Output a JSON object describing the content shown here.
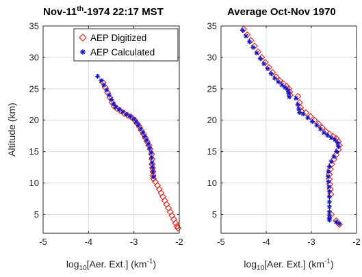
{
  "chart_data": [
    {
      "type": "scatter",
      "title": {
        "prefix": "Nov-11",
        "sup": "th",
        "suffix": "-1974 22:17 MST"
      },
      "xlabel": {
        "pre": "log",
        "sub": "10",
        "mid": "[Aer. Ext.] (km",
        "sup": "-1",
        "post": ")"
      },
      "ylabel": "Altitude (km)",
      "xlim": [
        -5,
        -2
      ],
      "ylim": [
        2,
        35
      ],
      "xticks": [
        "-5",
        "-4",
        "-3",
        "-2"
      ],
      "yticks": [
        "5",
        "10",
        "15",
        "20",
        "25",
        "30",
        "35"
      ],
      "grid": true,
      "legend": {
        "position": "top-right",
        "entries": [
          "AEP Digitized",
          "AEP Calculated"
        ]
      },
      "series": [
        {
          "name": "AEP Digitized",
          "marker": "diamond",
          "color": "#e8231c",
          "x": [
            -3.68,
            -3.63,
            -3.58,
            -3.53,
            -3.48,
            -3.43,
            -3.38,
            -3.3,
            -3.22,
            -3.14,
            -3.06,
            -2.98,
            -2.93,
            -2.88,
            -2.84,
            -2.79,
            -2.75,
            -2.71,
            -2.67,
            -2.64,
            -2.61,
            -2.6,
            -2.6,
            -2.59,
            -2.58,
            -2.58,
            -2.57,
            -2.53,
            -2.48,
            -2.44,
            -2.4,
            -2.36,
            -2.32,
            -2.28,
            -2.24,
            -2.2,
            -2.16,
            -2.12,
            -2.08,
            -2.05,
            -2.03
          ],
          "y": [
            26,
            25.2,
            24.4,
            23.6,
            22.8,
            22.2,
            21.9,
            21.5,
            21.1,
            20.8,
            20.5,
            20,
            19.5,
            19,
            18.4,
            17.8,
            17.2,
            16.6,
            16,
            15.4,
            14.6,
            13.8,
            13,
            12.4,
            11.8,
            11.2,
            10.7,
            10.2,
            9.6,
            9,
            8.4,
            7.8,
            7.2,
            6.6,
            6,
            5.4,
            4.8,
            4.2,
            3.6,
            3.1,
            2.8
          ]
        },
        {
          "name": "AEP Calculated",
          "marker": "asterisk",
          "color": "#1414c8",
          "x": [
            -3.8,
            -3.72,
            -3.66,
            -3.6,
            -3.55,
            -3.5,
            -3.45,
            -3.4,
            -3.32,
            -3.24,
            -3.16,
            -3.08,
            -3.0,
            -2.95,
            -2.9,
            -2.85,
            -2.8,
            -2.76,
            -2.72,
            -2.68,
            -2.65,
            -2.62,
            -2.61,
            -2.6,
            -2.59,
            -2.58,
            -2.57
          ],
          "y": [
            27,
            26.3,
            25.6,
            24.8,
            24,
            23.3,
            22.6,
            22.1,
            21.7,
            21.3,
            20.9,
            20.6,
            20.2,
            19.7,
            19.2,
            18.6,
            18,
            17.4,
            16.8,
            16.2,
            15.5,
            14.8,
            14,
            13.2,
            12.5,
            11.8,
            11
          ]
        }
      ]
    },
    {
      "type": "scatter",
      "title": "Average Oct-Nov 1970",
      "xlabel": {
        "pre": "log",
        "sub": "10",
        "mid": "[Aer. Ext.] (km",
        "sup": "-1",
        "post": ")"
      },
      "xlim": [
        -5,
        -2
      ],
      "ylim": [
        2,
        35
      ],
      "xticks": [
        "-5",
        "-4",
        "-3",
        "-2"
      ],
      "yticks": [
        "5",
        "10",
        "15",
        "20",
        "25",
        "30",
        "35"
      ],
      "grid": true,
      "series": [
        {
          "name": "AEP Digitized",
          "marker": "diamond",
          "color": "#e8231c",
          "x": [
            -4.5,
            -4.42,
            -4.34,
            -4.26,
            -4.18,
            -4.1,
            -4.02,
            -3.94,
            -3.86,
            -3.78,
            -3.7,
            -3.62,
            -3.55,
            -3.5,
            -3.48,
            -3.47,
            -3.3,
            -3.26,
            -3.24,
            -3.22,
            -3.12,
            -3.02,
            -2.93,
            -2.84,
            -2.76,
            -2.68,
            -2.6,
            -2.52,
            -2.45,
            -2.4,
            -2.38,
            -2.4,
            -2.45,
            -2.5,
            -2.55,
            -2.58,
            -2.6,
            -2.6,
            -2.59,
            -2.58,
            -2.57,
            -2.56,
            -2.45,
            -2.38
          ],
          "y": [
            34.5,
            33.6,
            32.7,
            31.8,
            30.9,
            30,
            29.2,
            28.4,
            27.6,
            26.9,
            26.3,
            25.8,
            25.4,
            25,
            24.5,
            24,
            23.8,
            22.8,
            22,
            21.4,
            21.2,
            20.6,
            20,
            19.4,
            18.8,
            18.2,
            17.8,
            17.4,
            17.1,
            16.6,
            16,
            15.3,
            14.5,
            13.8,
            13,
            12.2,
            11.4,
            10.6,
            9.8,
            9,
            8.2,
            5,
            4,
            3.4
          ]
        },
        {
          "name": "AEP Calculated",
          "marker": "asterisk",
          "color": "#1414c8",
          "x": [
            -4.52,
            -4.45,
            -4.37,
            -4.29,
            -4.21,
            -4.13,
            -4.05,
            -3.97,
            -3.89,
            -3.81,
            -3.73,
            -3.65,
            -3.58,
            -3.52,
            -3.5,
            -3.49,
            -3.34,
            -3.3,
            -3.28,
            -3.26,
            -3.18,
            -3.08,
            -2.98,
            -2.88,
            -2.8,
            -2.72,
            -2.64,
            -2.56,
            -2.48,
            -2.42,
            -2.4,
            -2.44,
            -2.5,
            -2.56,
            -2.6,
            -2.62,
            -2.63,
            -2.62,
            -2.61,
            -2.6,
            -2.6,
            -2.6,
            -2.6,
            -2.6,
            -2.6,
            -2.6,
            -2.6,
            -2.45,
            -2.38
          ],
          "y": [
            34.3,
            33.4,
            32.5,
            31.6,
            30.7,
            29.8,
            29,
            28.2,
            27.4,
            26.7,
            26.1,
            25.6,
            25.2,
            24.8,
            24.3,
            23.7,
            23.5,
            22.5,
            21.8,
            21.2,
            21,
            20.4,
            19.8,
            19.2,
            18.6,
            18,
            17.6,
            17.2,
            16.9,
            16.4,
            15.8,
            15,
            14.2,
            13.4,
            12.6,
            11.8,
            11,
            10.2,
            9.4,
            8.6,
            7.8,
            7,
            6.2,
            5.4,
            4.8,
            4.4,
            4.1,
            3.8,
            3.5
          ]
        }
      ]
    }
  ]
}
